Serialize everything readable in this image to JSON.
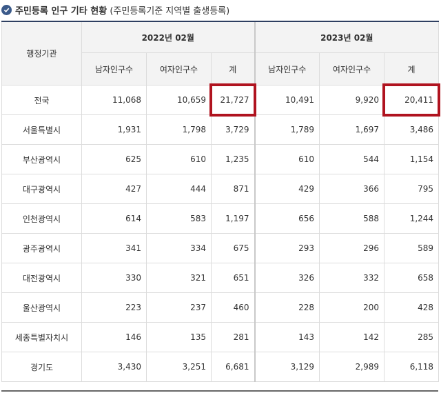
{
  "title": {
    "bold_text": "주민등록 인구 기타 현황",
    "normal_text": "(주민등록기준 지역별 출생등록)"
  },
  "table": {
    "row_header": "행정기관",
    "years": [
      "2022년 02월",
      "2023년 02월"
    ],
    "subheaders": [
      "남자인구수",
      "여자인구수",
      "계"
    ],
    "rows": [
      {
        "region": "전국",
        "v": [
          "11,068",
          "10,659",
          "21,727",
          "10,491",
          "9,920",
          "20,411"
        ]
      },
      {
        "region": "서울특별시",
        "v": [
          "1,931",
          "1,798",
          "3,729",
          "1,789",
          "1,697",
          "3,486"
        ]
      },
      {
        "region": "부산광역시",
        "v": [
          "625",
          "610",
          "1,235",
          "610",
          "544",
          "1,154"
        ]
      },
      {
        "region": "대구광역시",
        "v": [
          "427",
          "444",
          "871",
          "429",
          "366",
          "795"
        ]
      },
      {
        "region": "인천광역시",
        "v": [
          "614",
          "583",
          "1,197",
          "656",
          "588",
          "1,244"
        ]
      },
      {
        "region": "광주광역시",
        "v": [
          "341",
          "334",
          "675",
          "293",
          "296",
          "589"
        ]
      },
      {
        "region": "대전광역시",
        "v": [
          "330",
          "321",
          "651",
          "326",
          "332",
          "658"
        ]
      },
      {
        "region": "울산광역시",
        "v": [
          "223",
          "237",
          "460",
          "228",
          "200",
          "428"
        ]
      },
      {
        "region": "세종특별자치시",
        "v": [
          "146",
          "135",
          "281",
          "143",
          "142",
          "285"
        ]
      },
      {
        "region": "경기도",
        "v": [
          "3,430",
          "3,251",
          "6,681",
          "3,129",
          "2,989",
          "6,118"
        ]
      }
    ]
  },
  "highlight_color": "#b0131f"
}
